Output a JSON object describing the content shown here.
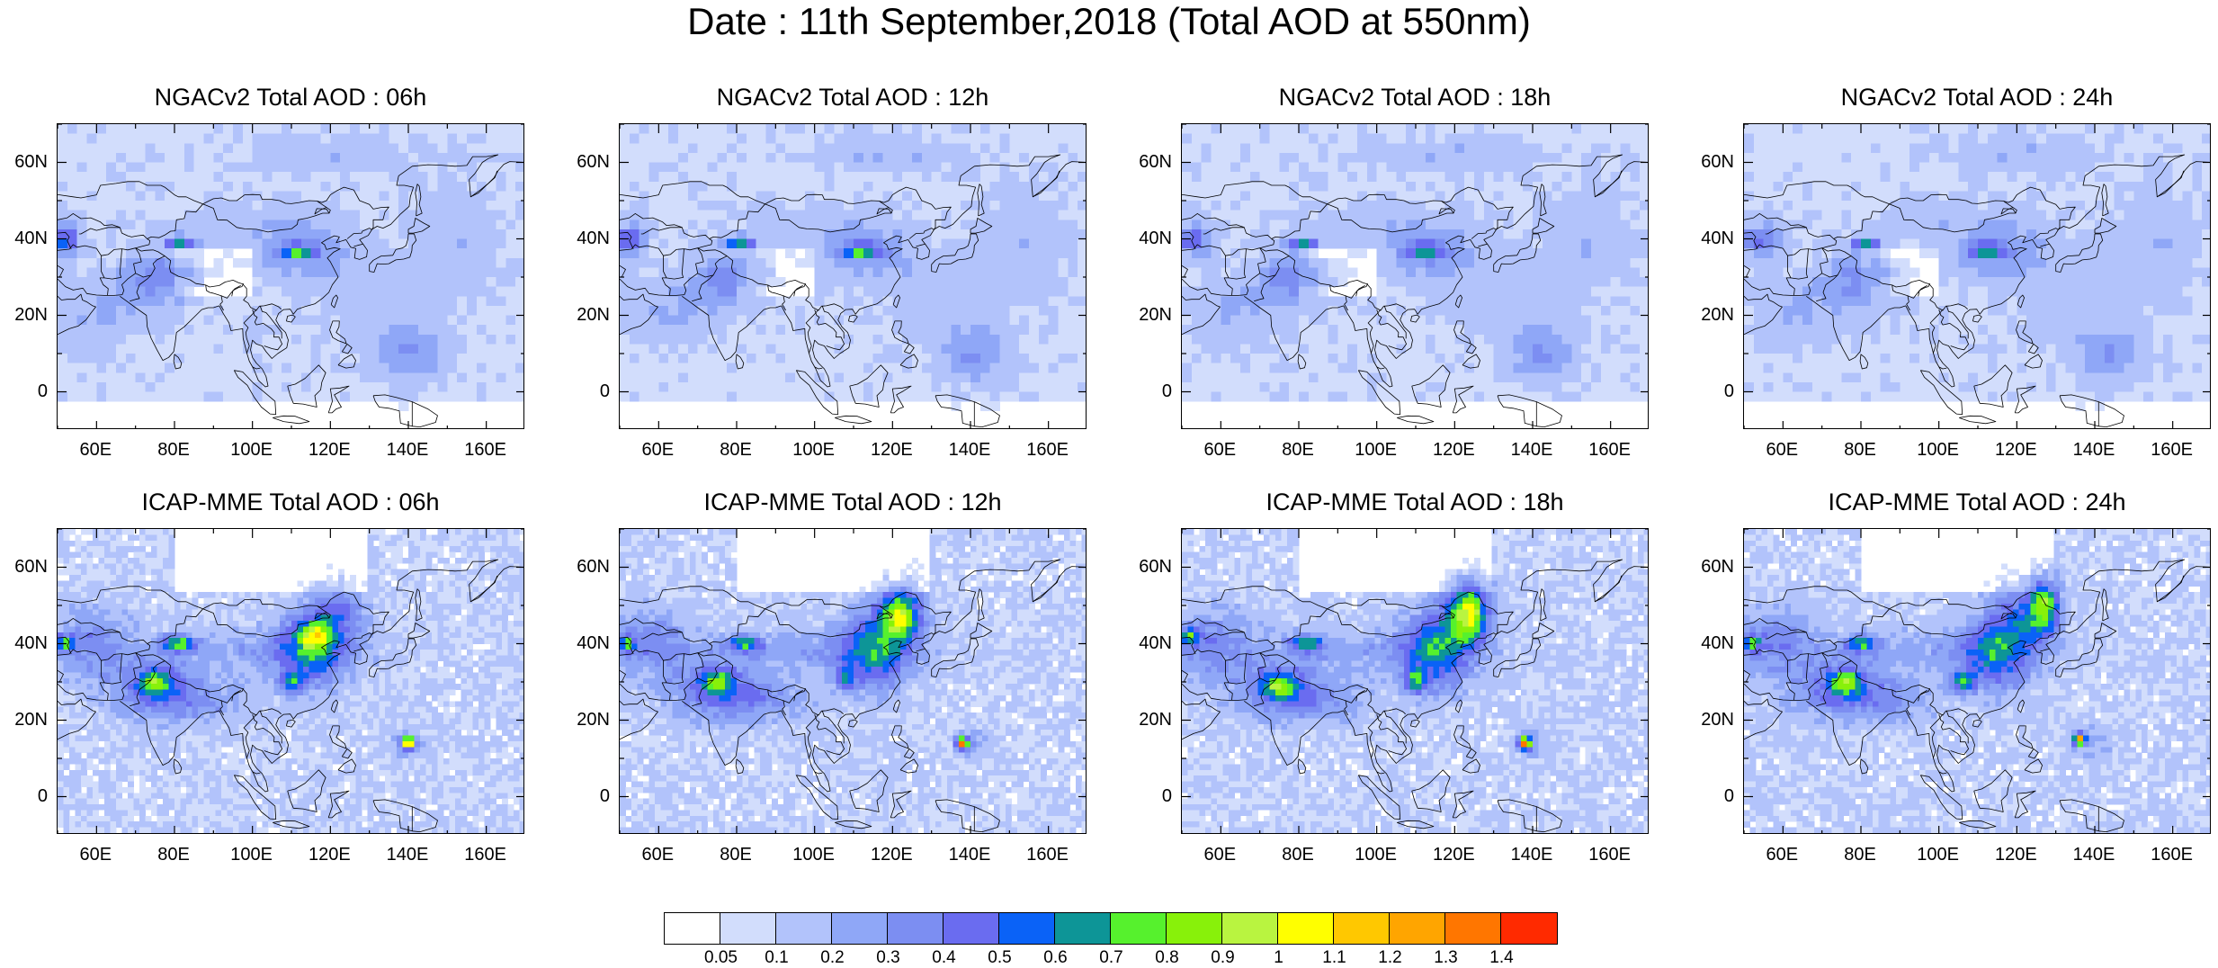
{
  "title": "Date : 11th September,2018 (Total AOD at 550nm)",
  "lon_ticks": [
    "60E",
    "80E",
    "100E",
    "120E",
    "140E",
    "160E"
  ],
  "lon_tick_values": [
    60,
    80,
    100,
    120,
    140,
    160
  ],
  "lat_ticks": [
    "60N",
    "40N",
    "20N",
    "0"
  ],
  "lat_tick_values": [
    60,
    40,
    20,
    0
  ],
  "map_extent": {
    "lon": [
      50,
      170
    ],
    "lat": [
      -10,
      70
    ]
  },
  "panels": [
    {
      "title": "NGACv2 Total AOD : 06h",
      "model": "NGACv2",
      "lead": "06h"
    },
    {
      "title": "NGACv2 Total AOD : 12h",
      "model": "NGACv2",
      "lead": "12h"
    },
    {
      "title": "NGACv2 Total AOD : 18h",
      "model": "NGACv2",
      "lead": "18h"
    },
    {
      "title": "NGACv2 Total AOD : 24h",
      "model": "NGACv2",
      "lead": "24h"
    },
    {
      "title": "ICAP-MME Total AOD : 06h",
      "model": "ICAP-MME",
      "lead": "06h"
    },
    {
      "title": "ICAP-MME Total AOD : 12h",
      "model": "ICAP-MME",
      "lead": "12h"
    },
    {
      "title": "ICAP-MME Total AOD : 18h",
      "model": "ICAP-MME",
      "lead": "18h"
    },
    {
      "title": "ICAP-MME Total AOD : 24h",
      "model": "ICAP-MME",
      "lead": "24h"
    }
  ],
  "colorbar": {
    "colors": [
      "#ffffff",
      "#d2ddfc",
      "#b2c3fb",
      "#8fa7f7",
      "#7c8ef2",
      "#6a6cf0",
      "#0a62f7",
      "#0d9597",
      "#56f12d",
      "#88f10a",
      "#b9f440",
      "#ffff00",
      "#ffc800",
      "#ffa500",
      "#ff7600",
      "#ff2a00"
    ],
    "labels": [
      "0.05",
      "0.1",
      "0.2",
      "0.3",
      "0.4",
      "0.5",
      "0.6",
      "0.7",
      "0.8",
      "0.9",
      "1",
      "1.1",
      "1.2",
      "1.3",
      "1.4"
    ]
  }
}
